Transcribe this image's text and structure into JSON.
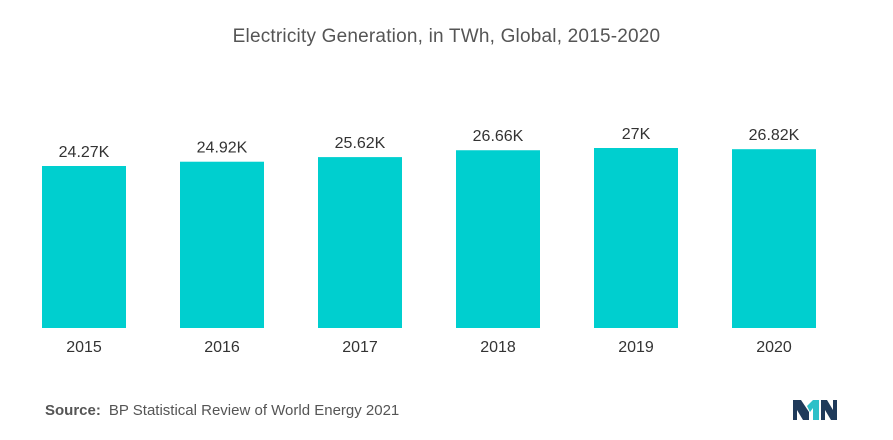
{
  "chart_data": {
    "type": "bar",
    "title": "Electricity Generation, in TWh, Global, 2015-2020",
    "categories": [
      "2015",
      "2016",
      "2017",
      "2018",
      "2019",
      "2020"
    ],
    "values": [
      24.27,
      24.92,
      25.62,
      26.66,
      27.0,
      26.82
    ],
    "data_labels": [
      "24.27K",
      "24.92K",
      "25.62K",
      "26.66K",
      "27K",
      "26.82K"
    ],
    "unit_multiplier": "K",
    "bar_color": "#00cfcf",
    "grid": false,
    "legend": "none"
  },
  "source": {
    "label": "Source:",
    "text": "BP Statistical Review of World Energy 2021"
  },
  "logo": {
    "icon": "mordor-intelligence-logo-icon",
    "colors": [
      "#1f3a5a",
      "#2cc0c8"
    ]
  }
}
